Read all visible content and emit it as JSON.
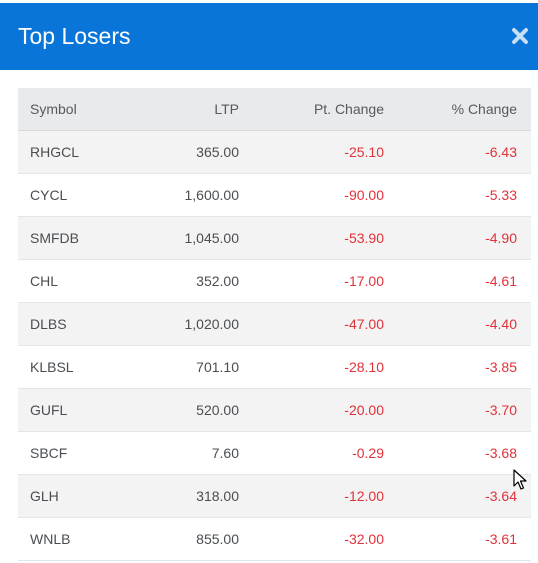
{
  "modal": {
    "title": "Top Losers",
    "close_icon": "close-x-icon"
  },
  "colors": {
    "header_bg": "#0a75d8",
    "negative": "#e0323a"
  },
  "table": {
    "columns": [
      "Symbol",
      "LTP",
      "Pt. Change",
      "% Change"
    ],
    "rows": [
      {
        "symbol": "RHGCL",
        "ltp": "365.00",
        "pt_change": "-25.10",
        "pct_change": "-6.43"
      },
      {
        "symbol": "CYCL",
        "ltp": "1,600.00",
        "pt_change": "-90.00",
        "pct_change": "-5.33"
      },
      {
        "symbol": "SMFDB",
        "ltp": "1,045.00",
        "pt_change": "-53.90",
        "pct_change": "-4.90"
      },
      {
        "symbol": "CHL",
        "ltp": "352.00",
        "pt_change": "-17.00",
        "pct_change": "-4.61"
      },
      {
        "symbol": "DLBS",
        "ltp": "1,020.00",
        "pt_change": "-47.00",
        "pct_change": "-4.40"
      },
      {
        "symbol": "KLBSL",
        "ltp": "701.10",
        "pt_change": "-28.10",
        "pct_change": "-3.85"
      },
      {
        "symbol": "GUFL",
        "ltp": "520.00",
        "pt_change": "-20.00",
        "pct_change": "-3.70"
      },
      {
        "symbol": "SBCF",
        "ltp": "7.60",
        "pt_change": "-0.29",
        "pct_change": "-3.68"
      },
      {
        "symbol": "GLH",
        "ltp": "318.00",
        "pt_change": "-12.00",
        "pct_change": "-3.64"
      },
      {
        "symbol": "WNLB",
        "ltp": "855.00",
        "pt_change": "-32.00",
        "pct_change": "-3.61"
      }
    ]
  },
  "cursor_icon": "mouse-pointer-icon"
}
